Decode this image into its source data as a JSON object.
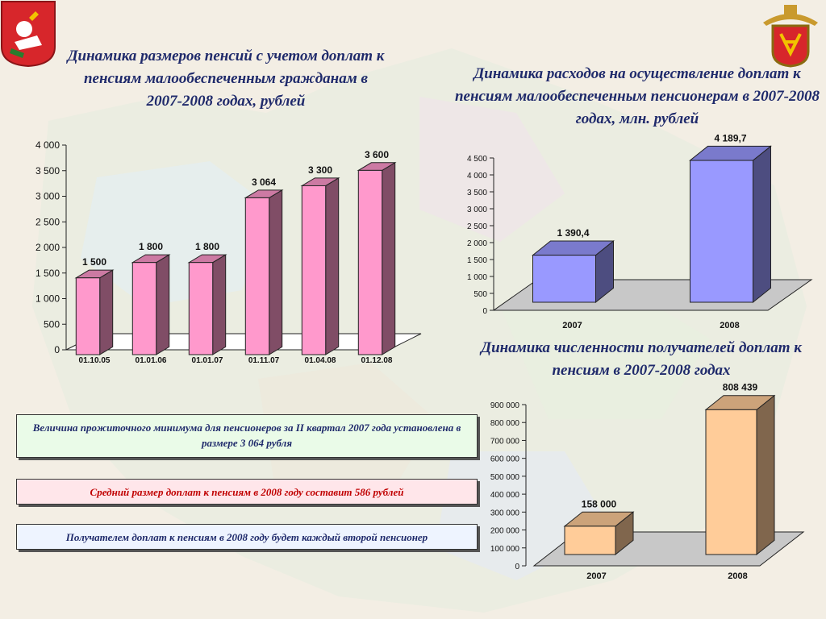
{
  "titles": {
    "pensions": "Динамика размеров пенсий с учетом доплат к пенсиям малообеспеченным гражданам в 2007-2008 годах, рублей",
    "expenses": "Динамика расходов на осуществление доплат к пенсиям малообеспеченным пенсионерам в 2007-2008 годах, млн. рублей",
    "recipients": "Динамика численности получателей доплат к пенсиям в 2007-2008 годах"
  },
  "notes": {
    "subsistence": "Величина прожиточного минимума для пенсионеров за II квартал 2007 года установлена в размере 3 064 рубля",
    "average": "Средний размер доплат к пенсиям в 2008 году составит 586  рублей",
    "recipient": "Получателем доплат к пенсиям в 2008 году будет каждый второй пенсионер"
  },
  "colors": {
    "title": "#1f2a6b",
    "pink": "#ff99cc",
    "blue": "#9999ff",
    "orange": "#ffcc99",
    "note_green_bg": "#eafbe8",
    "note_pink_bg": "#ffe6ea",
    "note_blue_bg": "#eef4ff",
    "note_red_text": "#c00000"
  },
  "chart_data": [
    {
      "type": "bar",
      "categories": [
        "01.10.05",
        "01.01.06",
        "01.01.07",
        "01.11.07",
        "01.04.08",
        "01.12.08"
      ],
      "values": [
        1500,
        1800,
        1800,
        3064,
        3300,
        3600
      ],
      "data_labels": [
        "1 500",
        "1 800",
        "1 800",
        "3 064",
        "3 300",
        "3 600"
      ],
      "yticks": [
        "0",
        "500",
        "1 000",
        "1 500",
        "2 000",
        "2 500",
        "3 000",
        "3 500",
        "4 000"
      ],
      "ylim": [
        0,
        4000
      ],
      "color": "#ff99cc"
    },
    {
      "type": "bar",
      "categories": [
        "2007",
        "2008"
      ],
      "values": [
        1390.4,
        4189.7
      ],
      "data_labels": [
        "1 390,4",
        "4 189,7"
      ],
      "yticks": [
        "0",
        "500",
        "1 000",
        "1 500",
        "2 000",
        "2 500",
        "3 000",
        "3 500",
        "4 000",
        "4 500"
      ],
      "ylim": [
        0,
        4500
      ],
      "color": "#9999ff"
    },
    {
      "type": "bar",
      "categories": [
        "2007",
        "2008"
      ],
      "values": [
        158000,
        808439
      ],
      "data_labels": [
        "158 000",
        "808 439"
      ],
      "yticks": [
        "0",
        "100 000",
        "200 000",
        "300 000",
        "400 000",
        "500 000",
        "600 000",
        "700 000",
        "800 000",
        "900 000"
      ],
      "ylim": [
        0,
        900000
      ],
      "color": "#ffcc99"
    }
  ]
}
